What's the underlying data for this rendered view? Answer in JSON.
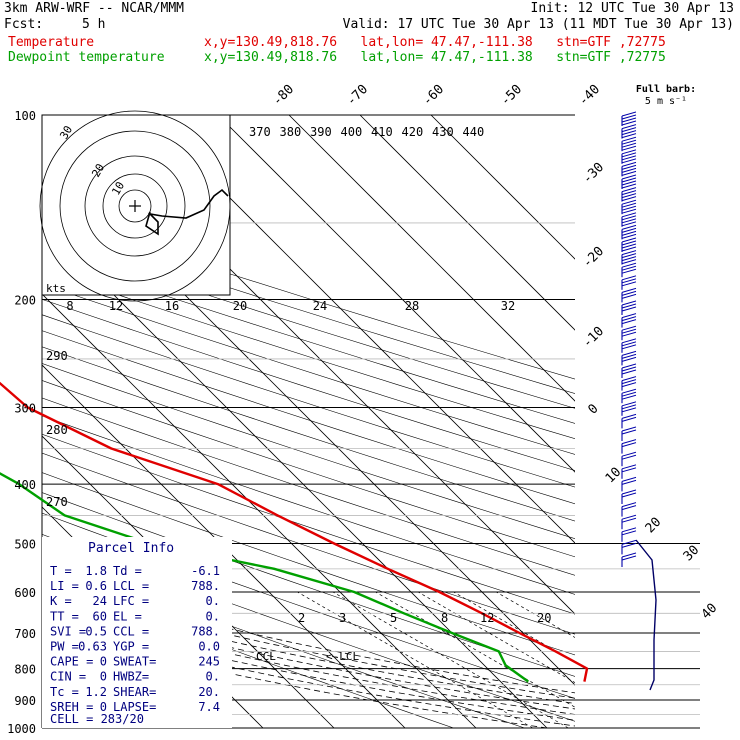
{
  "header": {
    "model": "3km ARW-WRF -- NCAR/MMM",
    "init": "Init: 12 UTC Tue 30 Apr 13",
    "fcst_label": "Fcst:",
    "fcst_hours": "5 h",
    "valid": "Valid: 17 UTC Tue 30 Apr 13 (11 MDT Tue 30 Apr 13)",
    "rows": [
      {
        "name": "Temperature",
        "info": "x,y=130.49,818.76   lat,lon= 47.47,-111.38   stn=GTF ,72775",
        "color": "#e00000"
      },
      {
        "name": "Dewpoint temperature",
        "info": "x,y=130.49,818.76   lat,lon= 47.47,-111.38   stn=GTF ,72775",
        "color": "#00a000"
      }
    ]
  },
  "chart_data": {
    "type": "line",
    "title": "",
    "xlabel": "",
    "ylabel": "",
    "y_scale": "log",
    "pressure_ticks": [
      "100",
      "200",
      "300",
      "400",
      "500",
      "600",
      "700",
      "800",
      "900",
      "1000"
    ],
    "isotherm_labels": [
      "-80",
      "-70",
      "-60",
      "-50",
      "-40",
      "-30",
      "-20",
      "-10",
      "0",
      "10",
      "20",
      "30",
      "40"
    ],
    "theta_labels": [
      "370",
      "380",
      "390",
      "400",
      "410",
      "420",
      "430",
      "440"
    ],
    "theta_left_labels": [
      "290",
      "280",
      "270"
    ],
    "mixing_ratio_labels": [
      "2",
      "3",
      "5",
      "8",
      "12",
      "20"
    ],
    "series": [
      {
        "name": "Temperature",
        "color": "#e00000",
        "points": [
          [
            100,
            -44
          ],
          [
            150,
            -50
          ],
          [
            200,
            -41
          ],
          [
            250,
            -39
          ],
          [
            300,
            -38
          ],
          [
            350,
            -32
          ],
          [
            400,
            -22
          ],
          [
            450,
            -18
          ],
          [
            500,
            -14
          ],
          [
            550,
            -10
          ],
          [
            600,
            -6
          ],
          [
            650,
            -3
          ],
          [
            700,
            -0.5
          ],
          [
            750,
            2
          ],
          [
            800,
            4
          ],
          [
            840,
            1.8
          ]
        ]
      },
      {
        "name": "Dewpoint temperature",
        "color": "#00a000",
        "points": [
          [
            100,
            -55
          ],
          [
            150,
            -67
          ],
          [
            200,
            -70
          ],
          [
            250,
            -66
          ],
          [
            300,
            -60
          ],
          [
            350,
            -54
          ],
          [
            400,
            -50
          ],
          [
            450,
            -48
          ],
          [
            500,
            -40
          ],
          [
            550,
            -26
          ],
          [
            600,
            -18
          ],
          [
            650,
            -14
          ],
          [
            700,
            -10
          ],
          [
            750,
            -6
          ],
          [
            790,
            -7
          ],
          [
            840,
            -6.1
          ]
        ]
      }
    ],
    "hodograph": {
      "rings": [
        "8",
        "12",
        "16",
        "20",
        "24",
        "28",
        "32"
      ],
      "ring_labels": [
        "30",
        "20",
        "10"
      ],
      "units": "kts"
    },
    "annotations": [
      "CCL",
      "LCL"
    ],
    "wind_barb_legend": {
      "title": "Full barb:",
      "value": "5 m s⁻¹"
    }
  },
  "parcel_info": {
    "title": "Parcel Info",
    "rows": [
      [
        "T  =",
        "1.8",
        "Td =",
        "-6.1"
      ],
      [
        "LI =",
        "0.6",
        "LCL =",
        "788."
      ],
      [
        "K  =",
        "24",
        "LFC =",
        "0."
      ],
      [
        "TT =",
        "60",
        "EL  =",
        "0."
      ],
      [
        "SVI =",
        "0.5",
        "CCL =",
        "788."
      ],
      [
        "PW =",
        "0.63",
        "YGP =",
        "0.0"
      ],
      [
        "CAPE =",
        "0",
        "SWEAT=",
        "245"
      ],
      [
        "CIN =",
        "0",
        "HWBZ=",
        "0."
      ],
      [
        "Tc =",
        "1.2",
        "SHEAR=",
        "20."
      ],
      [
        "SREH =",
        "0",
        "LAPSE=",
        "7.4"
      ]
    ],
    "cell": "CELL = 283/20"
  }
}
